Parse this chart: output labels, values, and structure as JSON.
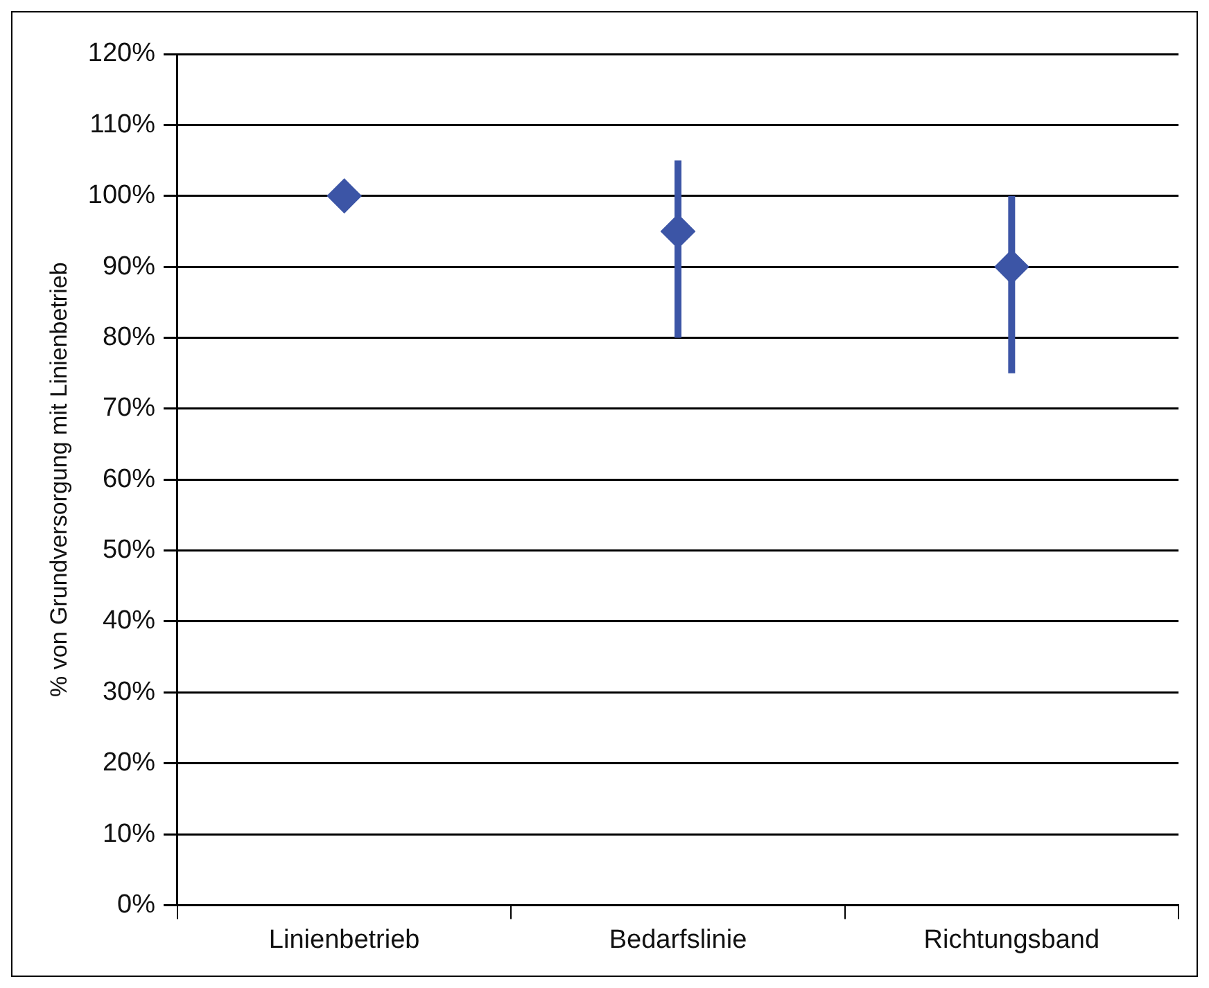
{
  "chart_data": {
    "type": "scatter",
    "ylabel": "% von Grundversorgung mit Linienbetrieb",
    "categories": [
      "Linienbetrieb",
      "Bedarfslinie",
      "Richtungsband"
    ],
    "values": [
      100,
      95,
      90
    ],
    "errors": [
      null,
      [
        80,
        105
      ],
      [
        75,
        100
      ]
    ],
    "color": "#3c55a6",
    "marker": "diamond",
    "grid": "y",
    "legend": false,
    "ylim": [
      0,
      120
    ],
    "yticks": [
      {
        "value": 0,
        "label": "0%"
      },
      {
        "value": 10,
        "label": "10%"
      },
      {
        "value": 20,
        "label": "20%"
      },
      {
        "value": 30,
        "label": "30%"
      },
      {
        "value": 40,
        "label": "40%"
      },
      {
        "value": 50,
        "label": "50%"
      },
      {
        "value": 60,
        "label": "60%"
      },
      {
        "value": 70,
        "label": "70%"
      },
      {
        "value": 80,
        "label": "80%"
      },
      {
        "value": 90,
        "label": "90%"
      },
      {
        "value": 100,
        "label": "100%"
      },
      {
        "value": 110,
        "label": "110%"
      },
      {
        "value": 120,
        "label": "120%"
      }
    ]
  }
}
